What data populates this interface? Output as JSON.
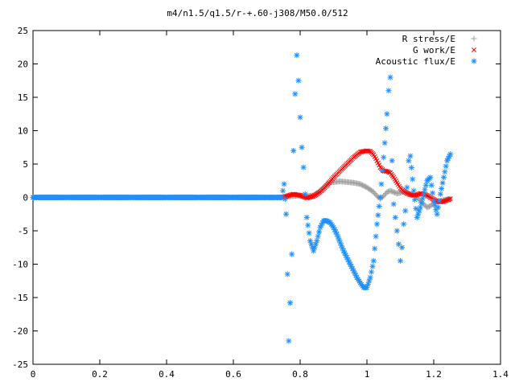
{
  "chart_data": {
    "type": "scatter",
    "title": "m4/n1.5/q1.5/r-+.60-j308/M50.0/512",
    "xlabel": "",
    "ylabel": "",
    "xlim": [
      0,
      1.4
    ],
    "ylim": [
      -25,
      25
    ],
    "xticks": [
      0,
      0.2,
      0.4,
      0.6,
      0.8,
      1,
      1.2,
      1.4
    ],
    "xtick_labels": [
      "0",
      "0.2",
      "0.4",
      "0.6",
      "0.8",
      "1",
      "1.2",
      "1.4"
    ],
    "yticks": [
      -25,
      -20,
      -15,
      -10,
      -5,
      0,
      5,
      10,
      15,
      20,
      25
    ],
    "ytick_labels": [
      "-25",
      "-20",
      "-15",
      "-10",
      "-5",
      "0",
      "5",
      "10",
      "15",
      "20",
      "25"
    ],
    "legend_position": "top-right",
    "grid": false,
    "series": [
      {
        "name": "R stress/E",
        "marker": "plus",
        "color": "#a0a0a0",
        "x": [
          0.0,
          0.1,
          0.2,
          0.3,
          0.4,
          0.5,
          0.6,
          0.7,
          0.745,
          0.76,
          0.78,
          0.8,
          0.82,
          0.84,
          0.86,
          0.87,
          0.88,
          0.89,
          0.9,
          0.92,
          0.94,
          0.96,
          0.98,
          1.0,
          1.02,
          1.03,
          1.04,
          1.05,
          1.06,
          1.07,
          1.08,
          1.09,
          1.1,
          1.11,
          1.12,
          1.13,
          1.14,
          1.15,
          1.16,
          1.17,
          1.18,
          1.19,
          1.2,
          1.21,
          1.22,
          1.23,
          1.24,
          1.25
        ],
        "y": [
          0,
          0,
          0,
          0,
          0,
          0,
          0,
          0,
          0,
          0.1,
          0.2,
          0.3,
          0.2,
          0.3,
          1.0,
          1.5,
          2.0,
          2.2,
          2.3,
          2.4,
          2.3,
          2.2,
          2.0,
          1.5,
          0.8,
          0.2,
          -0.2,
          0.2,
          0.8,
          1.0,
          0.8,
          0.6,
          0.7,
          0.9,
          0.8,
          0.5,
          0.4,
          0.0,
          -0.5,
          -1.0,
          -1.5,
          -1.3,
          -0.8,
          -0.6,
          -0.5,
          -0.4,
          -0.3,
          -0.2
        ]
      },
      {
        "name": "G work/E",
        "marker": "cross",
        "color": "#ff0000",
        "x": [
          0.0,
          0.1,
          0.2,
          0.3,
          0.4,
          0.5,
          0.6,
          0.7,
          0.745,
          0.76,
          0.78,
          0.8,
          0.82,
          0.84,
          0.86,
          0.88,
          0.9,
          0.92,
          0.94,
          0.96,
          0.98,
          1.0,
          1.01,
          1.02,
          1.03,
          1.04,
          1.05,
          1.06,
          1.07,
          1.08,
          1.09,
          1.1,
          1.11,
          1.12,
          1.13,
          1.14,
          1.15,
          1.16,
          1.17,
          1.18,
          1.19,
          1.2,
          1.21,
          1.22,
          1.23,
          1.24,
          1.25
        ],
        "y": [
          0,
          0,
          0,
          0,
          0,
          0,
          0,
          0,
          0,
          0.2,
          0.5,
          0.3,
          -0.1,
          0.2,
          0.8,
          1.8,
          3.0,
          4.0,
          5.0,
          6.0,
          6.8,
          7.0,
          6.9,
          6.4,
          5.5,
          4.5,
          4.0,
          3.9,
          3.7,
          3.0,
          2.2,
          1.4,
          0.9,
          0.6,
          0.4,
          0.3,
          0.4,
          0.6,
          0.5,
          0.3,
          0.0,
          -0.3,
          -0.6,
          -0.7,
          -0.6,
          -0.4,
          -0.2
        ]
      },
      {
        "name": "Acoustic flux/E",
        "marker": "star",
        "color": "#1e90ff",
        "x": [
          0.0,
          0.05,
          0.1,
          0.15,
          0.2,
          0.25,
          0.3,
          0.35,
          0.4,
          0.45,
          0.5,
          0.55,
          0.6,
          0.65,
          0.7,
          0.745,
          0.752,
          0.758,
          0.762,
          0.766,
          0.77,
          0.775,
          0.78,
          0.785,
          0.79,
          0.795,
          0.8,
          0.805,
          0.81,
          0.815,
          0.82,
          0.83,
          0.84,
          0.85,
          0.86,
          0.87,
          0.88,
          0.89,
          0.9,
          0.91,
          0.92,
          0.93,
          0.94,
          0.95,
          0.96,
          0.97,
          0.98,
          0.99,
          1.0,
          1.01,
          1.02,
          1.03,
          1.04,
          1.05,
          1.06,
          1.065,
          1.07,
          1.075,
          1.08,
          1.085,
          1.09,
          1.095,
          1.1,
          1.105,
          1.11,
          1.115,
          1.12,
          1.125,
          1.13,
          1.14,
          1.15,
          1.16,
          1.17,
          1.18,
          1.19,
          1.2,
          1.21,
          1.22,
          1.23,
          1.24,
          1.25
        ],
        "y": [
          0,
          0,
          0,
          0,
          0,
          0,
          0,
          0,
          0,
          0,
          0,
          0,
          0,
          0,
          0,
          0,
          2.0,
          -2.5,
          -11.5,
          -21.5,
          -15.8,
          -8.5,
          7.0,
          15.5,
          21.3,
          17.5,
          12.0,
          7.5,
          4.5,
          0.5,
          -3.0,
          -6.5,
          -8.0,
          -6.5,
          -4.5,
          -3.5,
          -3.5,
          -3.8,
          -4.5,
          -5.5,
          -6.8,
          -8.0,
          -9.0,
          -10.0,
          -11.0,
          -12.0,
          -12.8,
          -13.5,
          -13.5,
          -12.0,
          -9.5,
          -4.0,
          0.0,
          6.0,
          12.5,
          16.0,
          18.0,
          5.5,
          -1.0,
          -3.0,
          -5.0,
          -7.0,
          -9.5,
          -7.5,
          -4.0,
          -2.0,
          1.5,
          5.5,
          6.2,
          1.0,
          -3.0,
          -1.5,
          0.5,
          2.5,
          3.0,
          -0.5,
          -2.5,
          0.5,
          3.0,
          5.5,
          6.5
        ]
      }
    ]
  }
}
